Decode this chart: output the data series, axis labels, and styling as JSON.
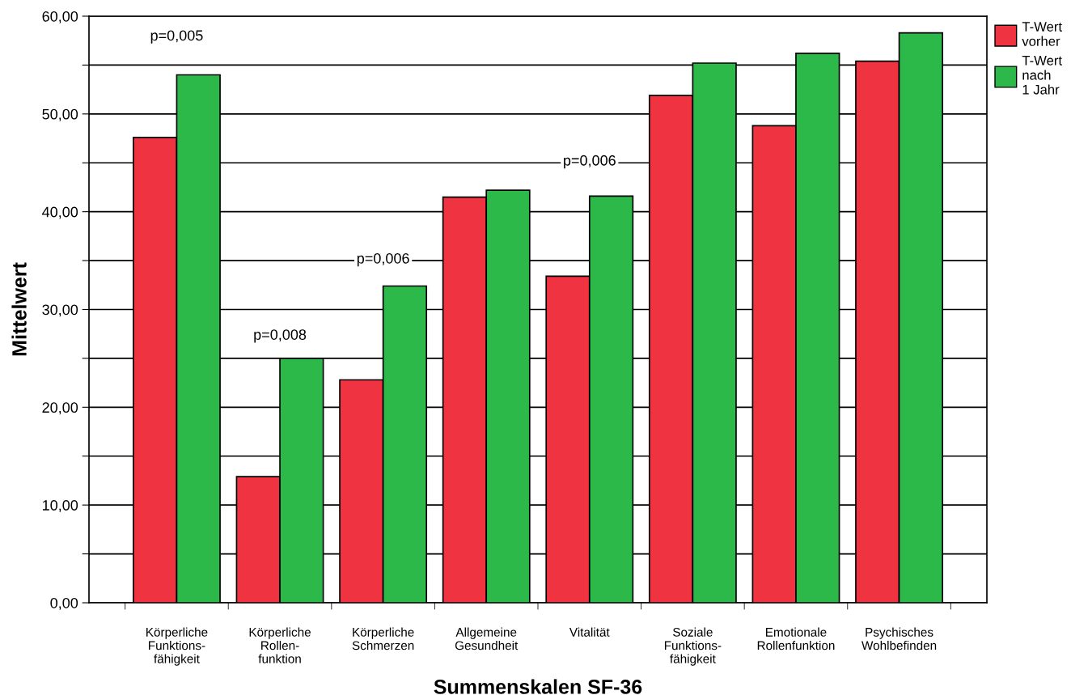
{
  "chart_data": {
    "type": "bar",
    "xlabel": "Summenskalen SF-36",
    "ylabel": "Mittelwert",
    "categories": [
      "Körperliche\nFunktions-\nfähigkeit",
      "Körperliche\nRollen-\nfunktion",
      "Körperliche\nSchmerzen",
      "Allgemeine\nGesundheit",
      "Vitalität",
      "Soziale\nFunktions-\nfähigkeit",
      "Emotionale\nRollenfunktion",
      "Psychisches\nWohlbefinden"
    ],
    "series": [
      {
        "name": "T-Wert\nvorher",
        "color": "#ef3340",
        "values": [
          47.6,
          12.9,
          22.8,
          41.5,
          33.4,
          51.9,
          48.8,
          55.4
        ]
      },
      {
        "name": "T-Wert\nnach\n1 Jahr",
        "color": "#2db84a",
        "values": [
          54.0,
          25.0,
          32.4,
          42.2,
          41.6,
          55.2,
          56.2,
          58.3
        ]
      }
    ],
    "ylim": [
      0,
      60
    ],
    "yticks": [
      {
        "value": 0,
        "label": "0,00"
      },
      {
        "value": 5,
        "label": null
      },
      {
        "value": 10,
        "label": "10,00"
      },
      {
        "value": 15,
        "label": null
      },
      {
        "value": 20,
        "label": "20,00"
      },
      {
        "value": 25,
        "label": null
      },
      {
        "value": 30,
        "label": "30,00"
      },
      {
        "value": 35,
        "label": null
      },
      {
        "value": 40,
        "label": "40,00"
      },
      {
        "value": 45,
        "label": null
      },
      {
        "value": 50,
        "label": "50,00"
      },
      {
        "value": 55,
        "label": null
      },
      {
        "value": 60,
        "label": "60,00"
      }
    ],
    "grid": "y",
    "legend": "top right",
    "annotations": [
      "p=0,005",
      "p=0,008",
      "p=0,006",
      "p=0,006"
    ]
  }
}
